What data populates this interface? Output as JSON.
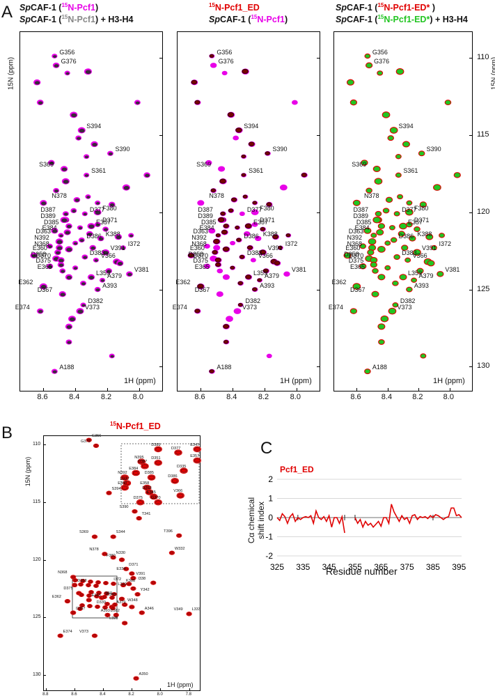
{
  "colors": {
    "magenta": "#e800e8",
    "dark": "#3a2a3a",
    "darkred": "#7a0000",
    "red": "#e00000",
    "green": "#22c522"
  },
  "panel_a": {
    "letter": "A",
    "headers": [
      {
        "line1_pre": "Sp",
        "line1_mid": "CAF-1 (",
        "line1_sup": "15",
        "line1_col": "N-Pcf1",
        "line1_post": ")",
        "line2_pre": "Sp",
        "line2_mid": "CAF-1 (",
        "line2_sup": "15",
        "line2_col": "N-Pcf1",
        "line2_post": ") + H3-H4"
      },
      {
        "line1_sup": "15",
        "line1_col": "N-Pcf1_ED",
        "line2_pre": "Sp",
        "line2_mid": "CAF-1 (",
        "line2_sup": "15",
        "line2_col": "N-Pcf1",
        "line2_post": ")"
      },
      {
        "line1_pre": "Sp",
        "line1_mid": "CAF-1 (",
        "line1_sup": "15",
        "line1_col": "N-Pcf1-ED*",
        "line1_post": " )",
        "line2_pre": "Sp",
        "line2_mid": "CAF-1 (",
        "line2_sup": "15",
        "line2_col": "N-Pcf1-ED*",
        "line2_post": ") + H3-H4"
      }
    ],
    "y_axis_title": "15N (ppm)",
    "x_axis_title": "1H (ppm)",
    "y_ticks": [
      "110",
      "115",
      "120",
      "125",
      "130"
    ],
    "x_ticks": [
      "8.6",
      "8.4",
      "8.2",
      "8.0"
    ],
    "peak_labels": [
      "G356",
      "G376",
      "S394",
      "S390",
      "S369",
      "S361",
      "N378",
      "F380",
      "D387",
      "D389",
      "D377",
      "D385",
      "E357",
      "D371",
      "E384",
      "D363",
      "K388",
      "N392",
      "D386",
      "N368",
      "I372",
      "E360",
      "D358",
      "D383",
      "D370",
      "V366",
      "D375",
      "V391",
      "E365",
      "L359",
      "A379",
      "V381",
      "E362",
      "A393",
      "D367",
      "D382",
      "E374",
      "V373",
      "A188"
    ]
  },
  "panel_b": {
    "letter": "B",
    "title_sup": "15",
    "title": "N-Pcf1_ED",
    "y_axis_title": "15N (ppm)",
    "x_axis_title": "1H (ppm)",
    "y_ticks": [
      "110",
      "115",
      "120",
      "125",
      "130"
    ],
    "x_ticks": [
      "8.8",
      "8.6",
      "8.4",
      "8.2",
      "8.0",
      "7.8"
    ],
    "peak_labels": [
      "G356",
      "G376",
      "S394",
      "S390",
      "T341",
      "S369",
      "S344",
      "T396",
      "W332",
      "N378",
      "N330",
      "F380",
      "D371",
      "E334",
      "V391",
      "I372",
      "K388",
      "L329",
      "Y342",
      "N368",
      "D358",
      "D375",
      "E365",
      "E362",
      "I359",
      "D343",
      "W348",
      "A379",
      "D367",
      "D339",
      "D382",
      "A393",
      "A346",
      "L328",
      "L333",
      "V349",
      "E374",
      "V373",
      "A350",
      "I338"
    ],
    "inset_labels": [
      "D389",
      "E347",
      "D377",
      "N395",
      "D351",
      "E357",
      "D387",
      "D335",
      "E384",
      "N392",
      "D385",
      "D386",
      "D337",
      "E360",
      "E358",
      "D363",
      "E345",
      "V366",
      "D370",
      "D375"
    ]
  },
  "panel_c": {
    "letter": "C",
    "title": "Pcf1_ED",
    "y_axis_title_1": "Cα chemical",
    "y_axis_title_2": "shift index",
    "x_axis_title": "Residue number"
  },
  "chart_data": {
    "type": "line",
    "title": "Pcf1_ED",
    "xlabel": "Residue number",
    "ylabel": "Cα chemical shift index",
    "xlim": [
      325,
      396
    ],
    "ylim": [
      -2,
      2
    ],
    "x_ticks": [
      325,
      335,
      345,
      355,
      365,
      375,
      385,
      395
    ],
    "y_ticks": [
      2,
      1,
      0,
      -1,
      -2
    ],
    "grid": true,
    "series": [
      {
        "name": "Pcf1_ED",
        "x": [
          325,
          326,
          327,
          328,
          329,
          330,
          331,
          332,
          333,
          334,
          335,
          336,
          337,
          338,
          339,
          340,
          341,
          342,
          343,
          344,
          345,
          346,
          347,
          348,
          349,
          350,
          351,
          355,
          356,
          357,
          358,
          359,
          360,
          361,
          362,
          363,
          364,
          365,
          366,
          367,
          368,
          369,
          370,
          371,
          372,
          373,
          374,
          375,
          376,
          377,
          378,
          379,
          380,
          381,
          382,
          383,
          384,
          385,
          386,
          387,
          388,
          389,
          390,
          391,
          392,
          393,
          394,
          395,
          396
        ],
        "y": [
          0.0,
          -0.15,
          0.2,
          0.05,
          -0.3,
          0.05,
          0.2,
          -0.2,
          0.0,
          -0.1,
          0.0,
          0.05,
          0.0,
          0.1,
          -0.3,
          0.35,
          0.0,
          -0.1,
          0.05,
          -0.2,
          0.1,
          -0.5,
          0.0,
          0.0,
          -0.3,
          0.05,
          -0.8,
          0.0,
          -0.3,
          -0.1,
          -0.5,
          -0.2,
          -0.4,
          -0.3,
          -0.5,
          -0.35,
          -0.2,
          -0.45,
          0.0,
          0.0,
          -0.3,
          0.7,
          0.3,
          0.05,
          -0.2,
          0.1,
          -0.1,
          0.0,
          -0.3,
          0.1,
          0.15,
          -0.1,
          0.05,
          0.0,
          0.05,
          -0.05,
          0.1,
          0.0,
          0.15,
          0.1,
          0.0,
          -0.1,
          0.0,
          0.05,
          0.5,
          0.5,
          0.1,
          0.15,
          0.0
        ]
      }
    ]
  }
}
